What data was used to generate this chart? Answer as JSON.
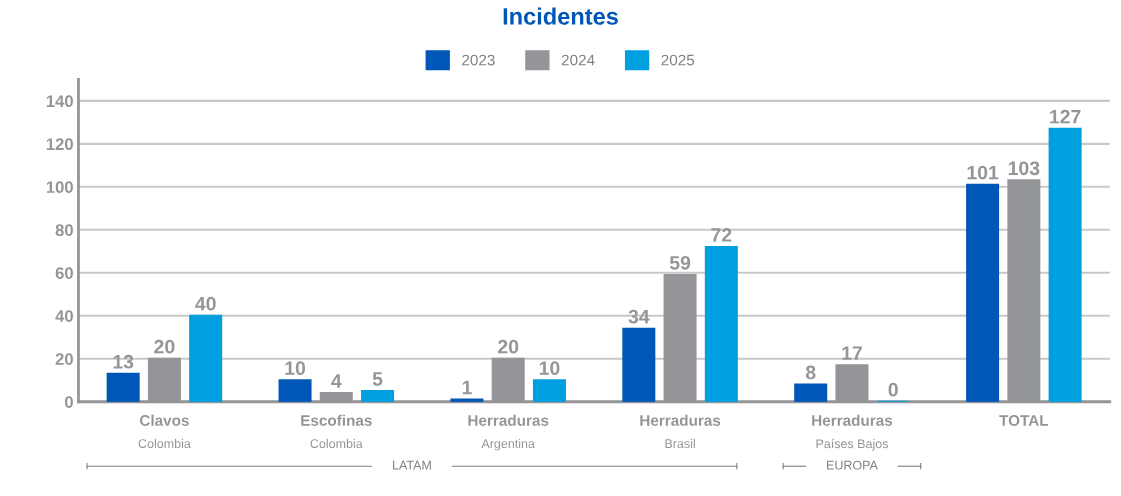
{
  "chart_data": {
    "type": "bar",
    "title": "Incidentes",
    "categories": [
      "Clavos\nColombia",
      "Escofinas\nColombia",
      "Herraduras\nArgentina",
      "Herraduras\nBrasil",
      "Herraduras\nPaíses Bajos",
      "TOTAL"
    ],
    "series": [
      {
        "name": "2023",
        "color": "#0057b8",
        "values": [
          13,
          10,
          1,
          34,
          8,
          101
        ]
      },
      {
        "name": "2024",
        "color": "#939598",
        "values": [
          20,
          4,
          20,
          59,
          17,
          103
        ]
      },
      {
        "name": "2025",
        "color": "#00a0e0",
        "values": [
          40,
          5,
          10,
          72,
          0,
          127
        ]
      }
    ],
    "ylim": [
      0,
      150
    ],
    "yticks": [
      0,
      20,
      40,
      60,
      80,
      100,
      120,
      140
    ],
    "grid": "y",
    "legend": "top",
    "data_labels": true,
    "tick_labels": "y",
    "annotations": [
      "LATAM",
      "EUROPA"
    ]
  }
}
